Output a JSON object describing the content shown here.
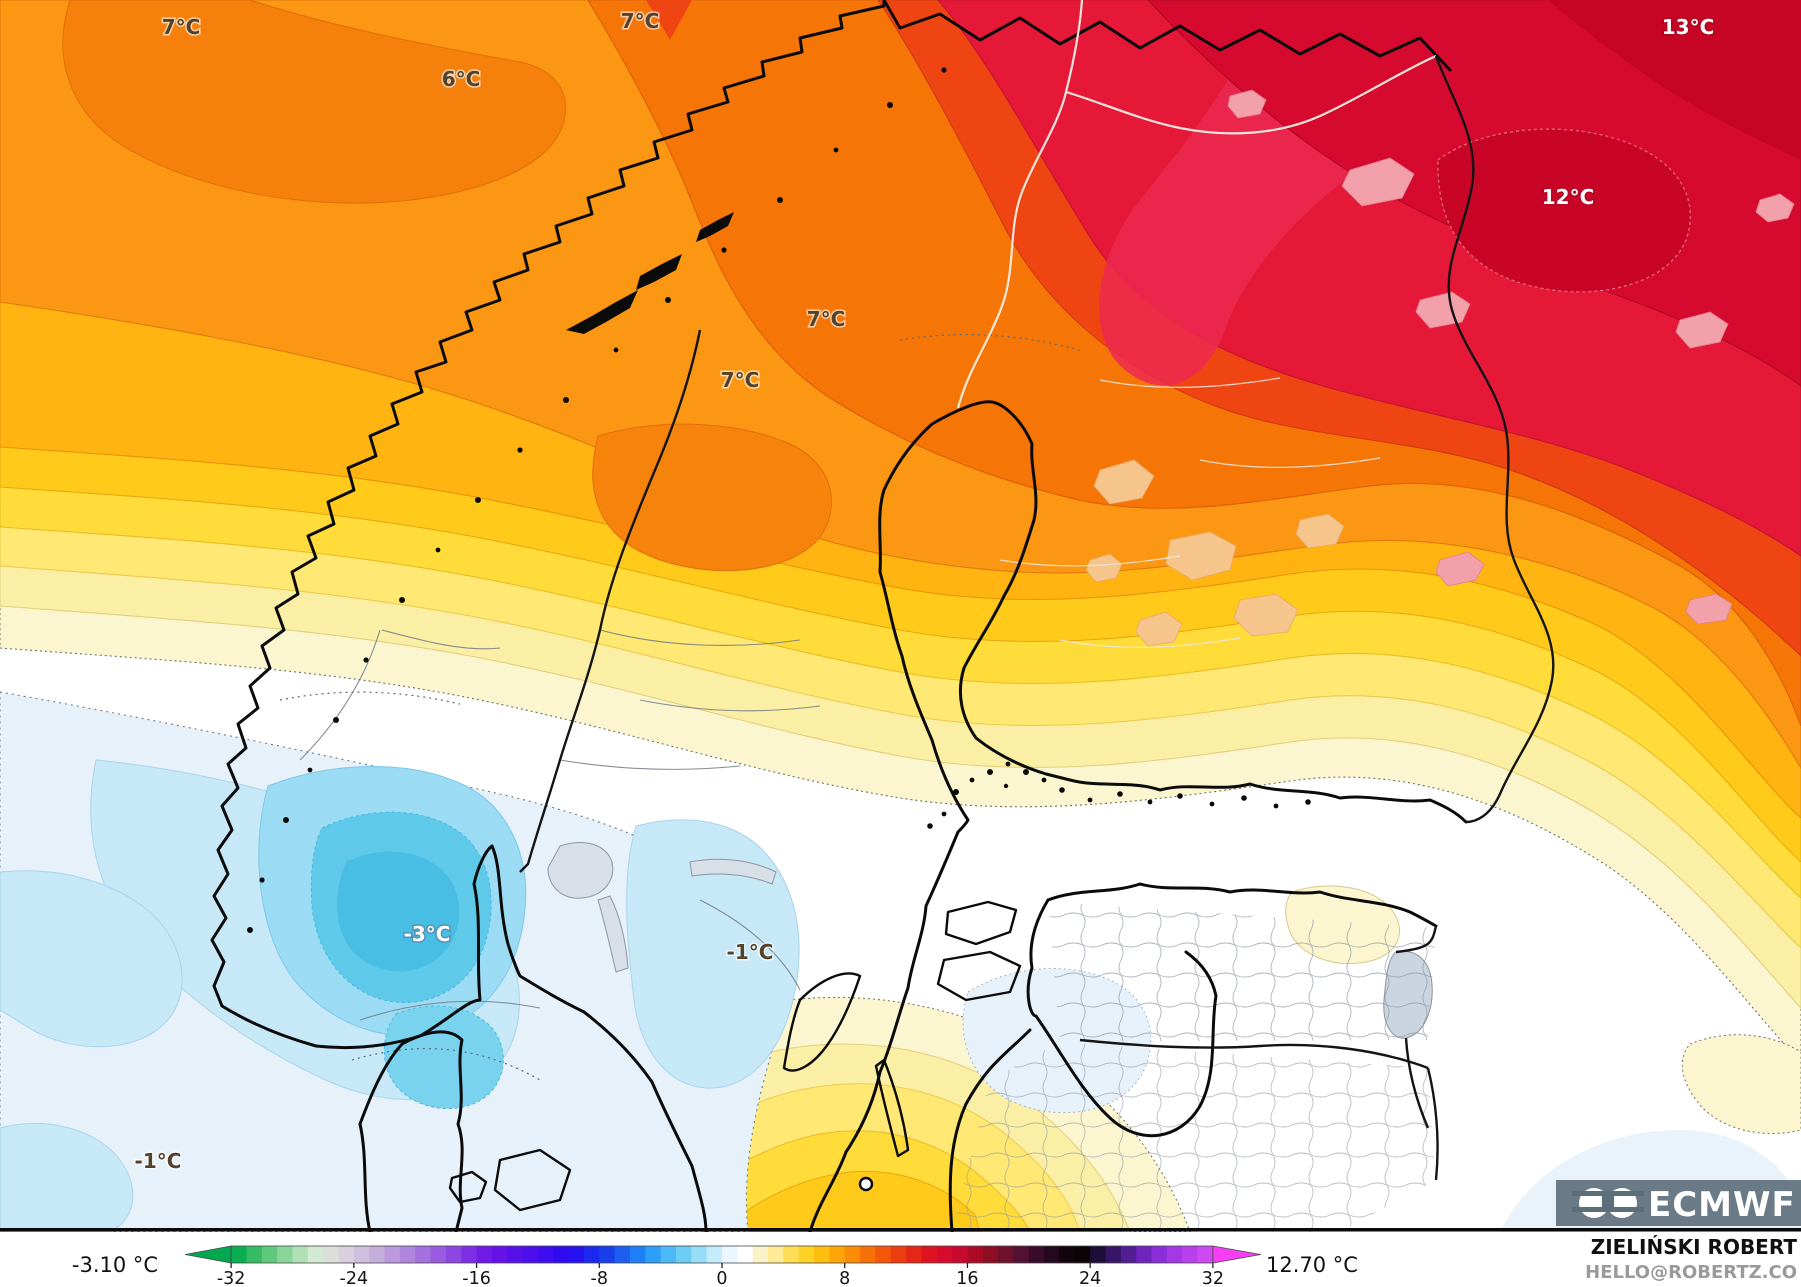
{
  "map": {
    "temperature_labels": [
      {
        "text": "7°C",
        "color": "dark"
      },
      {
        "text": "6°C",
        "color": "dark"
      },
      {
        "text": "7°C",
        "color": "dark"
      },
      {
        "text": "13°C",
        "color": "white"
      },
      {
        "text": "12°C",
        "color": "white"
      },
      {
        "text": "7°C",
        "color": "dark"
      },
      {
        "text": "7°C",
        "color": "dark"
      },
      {
        "text": "-3°C",
        "color": "white"
      },
      {
        "text": "-1°C",
        "color": "dark"
      },
      {
        "text": "-1°C",
        "color": "dark"
      }
    ],
    "logo_text": "ECMWF",
    "attribution": {
      "name": "ZIELIŃSKI ROBERT",
      "email": "HELLO@ROBERTZ.CO"
    },
    "palette": {
      "deep_red": "#c60423",
      "crimson": "#d60a2e",
      "red": "#e51937",
      "pink_red": "#ec2950",
      "red_orange": "#ee4512",
      "dark_orange": "#f67507",
      "orange": "#fb9712",
      "amber": "#ffb412",
      "golden": "#ffca1a",
      "yellow": "#ffdc3a",
      "light_yellow": "#ffe873",
      "pale_yellow": "#faefa5",
      "cream": "#fcf6d0",
      "white": "#ffffff",
      "pale_blue": "#e7f1fa",
      "light_blue": "#c7e8f7",
      "medium_blue": "#9bdcf4",
      "cyan": "#5fc9ea",
      "lake_gray": "#d9dfe7"
    }
  },
  "colorbar": {
    "min_label": "-3.10 °C",
    "max_label": "12.70 °C",
    "ticks": [
      {
        "value": -32,
        "label": "-32"
      },
      {
        "value": -24,
        "label": "-24"
      },
      {
        "value": -16,
        "label": "-16"
      },
      {
        "value": -8,
        "label": "-8"
      },
      {
        "value": 0,
        "label": "0"
      },
      {
        "value": 8,
        "label": "8"
      },
      {
        "value": 16,
        "label": "16"
      },
      {
        "value": 24,
        "label": "24"
      },
      {
        "value": 32,
        "label": "32"
      }
    ],
    "arrow_left_color": "#00a84f",
    "arrow_right_color": "#f63ef3",
    "blocks": [
      "#09ae51",
      "#35bb62",
      "#5fc97b",
      "#8ad598",
      "#b2e0b5",
      "#d2e9d2",
      "#dcdedc",
      "#d8d0de",
      "#cfbfdd",
      "#c5addc",
      "#bb99dc",
      "#b085dd",
      "#a571de",
      "#995ce0",
      "#8c46e1",
      "#7f2fe3",
      "#7119e5",
      "#6512e8",
      "#5810ea",
      "#4b0eec",
      "#3e0cee",
      "#310af0",
      "#2612f1",
      "#1d28ef",
      "#1840ea",
      "#1c5ff0",
      "#1f7ff6",
      "#2d9ff8",
      "#4bb9f6",
      "#6ccdf4",
      "#96ddf8",
      "#c4ecfb",
      "#e9f6fd",
      "#ffffff",
      "#fbf3c8",
      "#ffea96",
      "#ffde55",
      "#ffd226",
      "#ffbe10",
      "#ffa507",
      "#fc8b06",
      "#f77109",
      "#f2570b",
      "#ec3d0f",
      "#e62715",
      "#df131f",
      "#d70b2d",
      "#c70830",
      "#ac0b28",
      "#8d0e22",
      "#6f102c",
      "#521033",
      "#380d2b",
      "#23091c",
      "#12050c",
      "#0b0406",
      "#1c0e38",
      "#361566",
      "#521d93",
      "#6f25bc",
      "#8b2ed7",
      "#a437e6",
      "#ba40ee",
      "#cd49f2"
    ]
  }
}
